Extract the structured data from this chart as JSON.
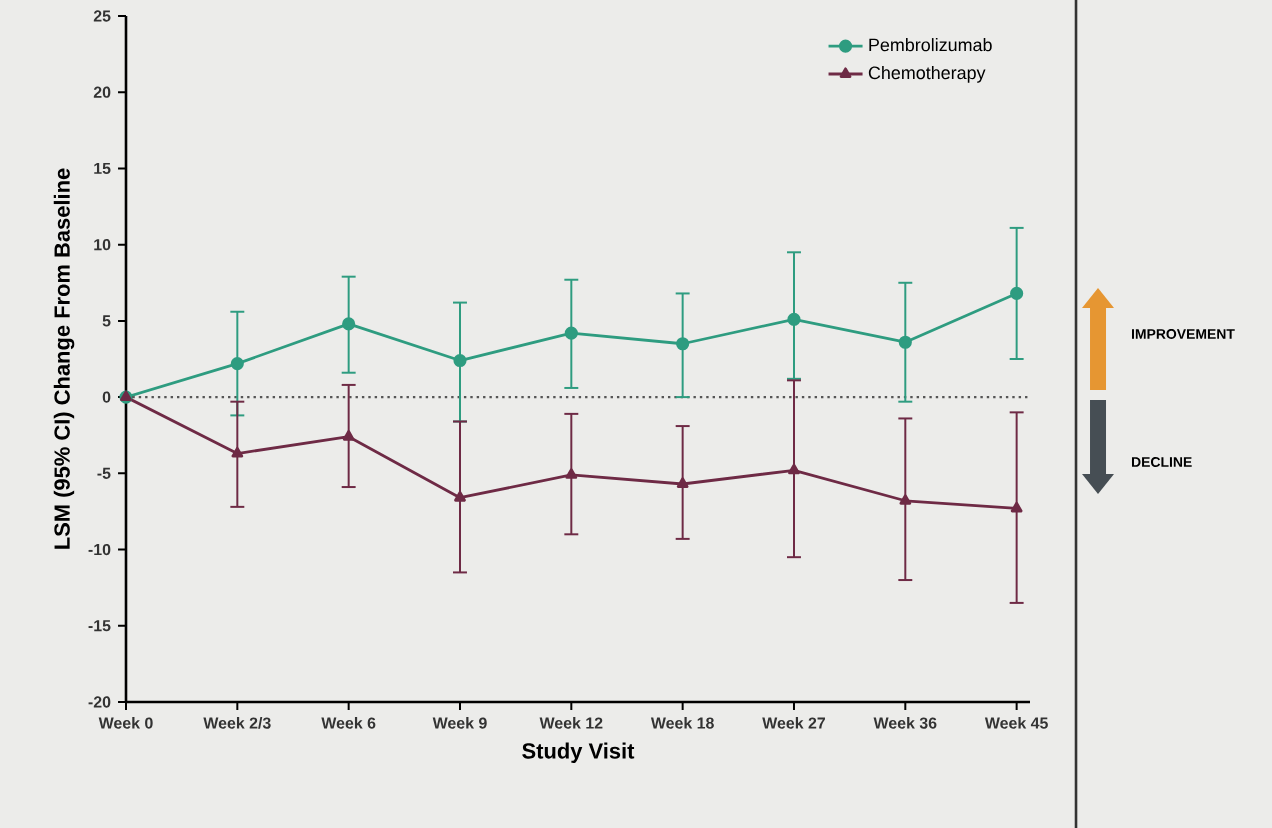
{
  "chart_data": {
    "type": "line",
    "xlabel": "Study Visit",
    "ylabel": "LSM (95% CI) Change From Baseline",
    "categories": [
      "Week 0",
      "Week 2/3",
      "Week 6",
      "Week 9",
      "Week 12",
      "Week 18",
      "Week 27",
      "Week 36",
      "Week 45"
    ],
    "series": [
      {
        "name": "Pembrolizumab",
        "color": "#2e9c80",
        "marker": "circle",
        "values": [
          0,
          2.2,
          4.8,
          2.4,
          4.2,
          3.5,
          5.1,
          3.6,
          6.8
        ],
        "errors": [
          null,
          [
            -1.2,
            5.6
          ],
          [
            1.6,
            7.9
          ],
          [
            -1.6,
            6.2
          ],
          [
            0.6,
            7.7
          ],
          [
            0,
            6.8
          ],
          [
            1.2,
            9.5
          ],
          [
            -0.3,
            7.5
          ],
          [
            2.5,
            11.1
          ]
        ]
      },
      {
        "name": "Chemotherapy",
        "color": "#6e2a45",
        "marker": "triangle",
        "values": [
          0,
          -3.7,
          -2.6,
          -6.6,
          -5.1,
          -5.7,
          -4.8,
          -6.8,
          -7.3
        ],
        "errors": [
          null,
          [
            -7.2,
            -0.3
          ],
          [
            -5.9,
            0.8
          ],
          [
            -11.5,
            -1.6
          ],
          [
            -9,
            -1.1
          ],
          [
            -9.3,
            -1.9
          ],
          [
            -10.5,
            1.1
          ],
          [
            -12,
            -1.4
          ],
          [
            -13.5,
            -1
          ]
        ]
      }
    ],
    "ylim": [
      -20,
      25
    ],
    "yticks": [
      -20,
      -15,
      -10,
      -5,
      0,
      5,
      10,
      15,
      20,
      25
    ],
    "ref_lines": [
      {
        "axis": "y",
        "value": 0,
        "color": "#555555",
        "line_style": "dotted"
      }
    ],
    "legend": "top right",
    "grid": false,
    "line_style": "solid",
    "annotations": [
      "IMPROVEMENT",
      "DECLINE"
    ]
  }
}
